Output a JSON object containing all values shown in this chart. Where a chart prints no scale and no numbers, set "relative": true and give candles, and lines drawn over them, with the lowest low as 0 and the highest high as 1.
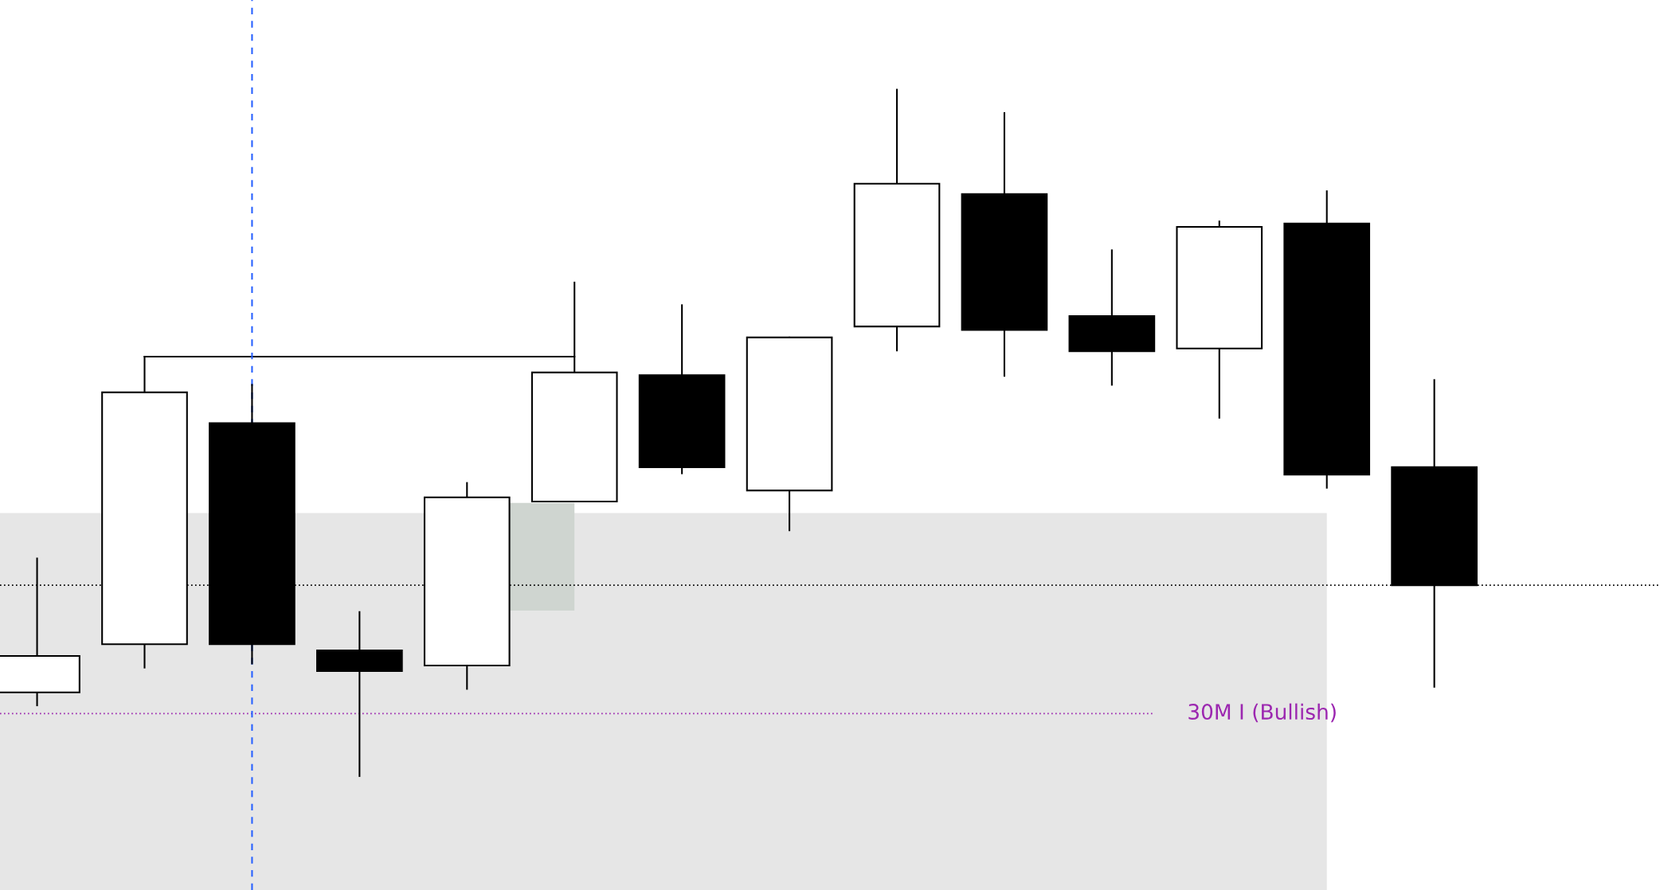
{
  "chart_data": {
    "type": "candlestick",
    "relative": true,
    "categories": [
      null,
      null,
      null,
      null,
      null,
      null,
      null,
      null,
      null,
      null,
      null,
      null,
      null,
      null
    ],
    "ohlc": [
      [
        0.122,
        0.317,
        0.103,
        0.175
      ],
      [
        0.192,
        0.611,
        0.158,
        0.559
      ],
      [
        0.514,
        0.57,
        0.164,
        0.192
      ],
      [
        0.183,
        0.239,
        0.0,
        0.153
      ],
      [
        0.161,
        0.427,
        0.127,
        0.406
      ],
      [
        0.4,
        0.719,
        0.4,
        0.588
      ],
      [
        0.584,
        0.686,
        0.441,
        0.45
      ],
      [
        0.416,
        0.639,
        0.358,
        0.639
      ],
      [
        0.655,
        1.0,
        0.62,
        0.863
      ],
      [
        0.848,
        0.966,
        0.583,
        0.65
      ],
      [
        0.67,
        0.766,
        0.57,
        0.619
      ],
      [
        0.623,
        0.808,
        0.522,
        0.8
      ],
      [
        0.805,
        0.852,
        0.42,
        0.439
      ],
      [
        0.45,
        0.577,
        0.13,
        0.278
      ]
    ],
    "ref_lines": [
      {
        "axis": "y",
        "value": 0.278,
        "color": "#000000",
        "line_style": "dotted"
      },
      {
        "axis": "y",
        "value": 0.091,
        "label": "30M I (Bullish)",
        "color": "#9c27b0",
        "line_style": "dotted"
      }
    ],
    "bands": [
      {
        "axis": "y",
        "from": 0.383,
        "to": -0.166,
        "color": "#e6e6e6"
      }
    ],
    "legend": false
  }
}
